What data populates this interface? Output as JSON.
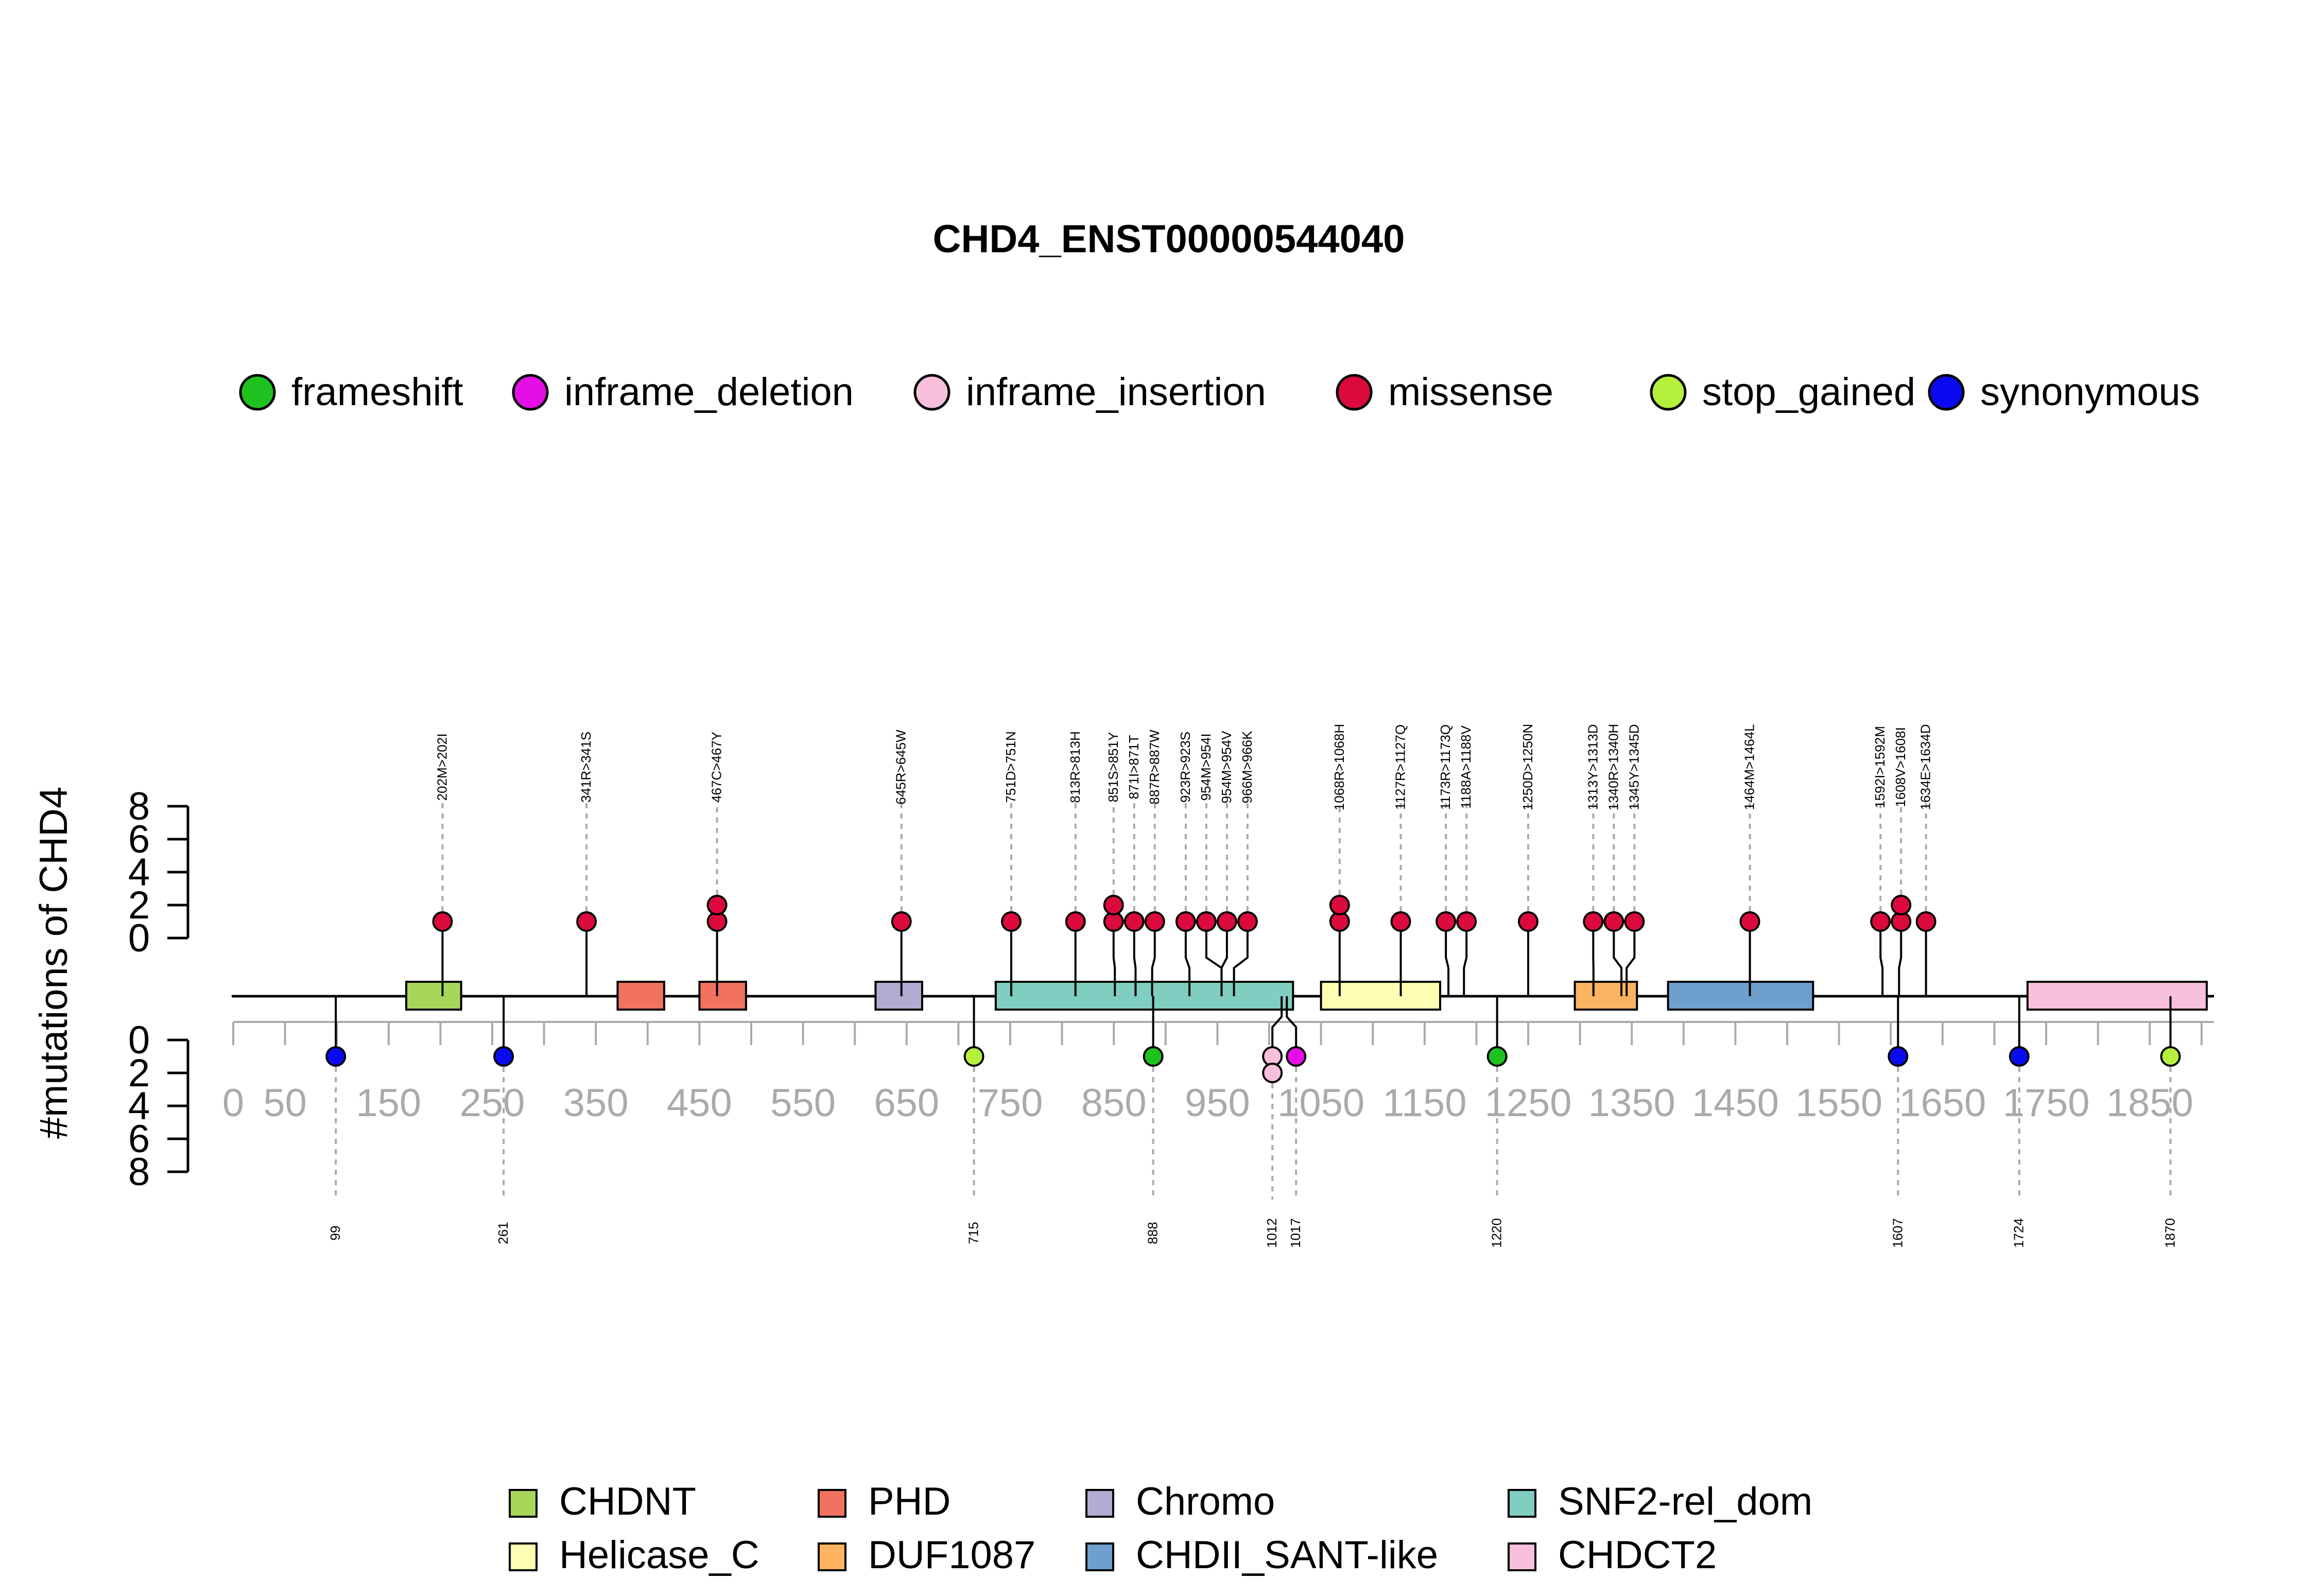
{
  "chart_data": {
    "type": "lollipop",
    "title": "CHD4_ENST00000544040",
    "ylabel": "#mutations of CHD4",
    "y_ticks": [
      "0",
      "2",
      "4",
      "6",
      "8"
    ],
    "x_ticks": [
      0,
      50,
      150,
      250,
      350,
      450,
      550,
      650,
      750,
      850,
      950,
      1050,
      1150,
      1250,
      1350,
      1450,
      1550,
      1650,
      1750,
      1850
    ],
    "protein_length": 1912,
    "mutation_legend": [
      {
        "name": "frameshift",
        "color": "#1ec21e"
      },
      {
        "name": "inframe_deletion",
        "color": "#e60ee6"
      },
      {
        "name": "inframe_insertion",
        "color": "#f8c0dc"
      },
      {
        "name": "missense",
        "color": "#dc0a3c"
      },
      {
        "name": "stop_gained",
        "color": "#b4f03c"
      },
      {
        "name": "synonymous",
        "color": "#0a0af0"
      }
    ],
    "domains": [
      {
        "name": "CHDNT",
        "start": 167,
        "end": 220,
        "color": "#a6d75b"
      },
      {
        "name": "PHD",
        "start": 371,
        "end": 416,
        "color": "#f0725f"
      },
      {
        "name": "PHD",
        "start": 450,
        "end": 495,
        "color": "#f0725f"
      },
      {
        "name": "Chromo",
        "start": 620,
        "end": 665,
        "color": "#b2abd2"
      },
      {
        "name": "SNF2-rel_dom",
        "start": 736,
        "end": 1023,
        "color": "#80cdc1"
      },
      {
        "name": "Helicase_C",
        "start": 1050,
        "end": 1165,
        "color": "#ffffb3"
      },
      {
        "name": "DUF1087",
        "start": 1295,
        "end": 1355,
        "color": "#fdb462"
      },
      {
        "name": "CHDII_SANT-like",
        "start": 1385,
        "end": 1525,
        "color": "#6f9fcc"
      },
      {
        "name": "CHDCT2",
        "start": 1732,
        "end": 1905,
        "color": "#f8c0dc"
      }
    ],
    "domain_legend": [
      {
        "name": "CHDNT",
        "color": "#a6d75b"
      },
      {
        "name": "PHD",
        "color": "#f0725f"
      },
      {
        "name": "Chromo",
        "color": "#b2abd2"
      },
      {
        "name": "SNF2-rel_dom",
        "color": "#80cdc1"
      },
      {
        "name": "Helicase_C",
        "color": "#ffffb3"
      },
      {
        "name": "DUF1087",
        "color": "#fdb462"
      },
      {
        "name": "CHDII_SANT-like",
        "color": "#6f9fcc"
      },
      {
        "name": "CHDCT2",
        "color": "#f8c0dc"
      }
    ],
    "top_mutations": [
      {
        "label": "202M>202I",
        "pos": 202,
        "count": 1,
        "type": "missense"
      },
      {
        "label": "341R>341S",
        "pos": 341,
        "count": 1,
        "type": "missense"
      },
      {
        "label": "467C>467Y",
        "pos": 467,
        "count": 2,
        "type": "missense"
      },
      {
        "label": "645R>645W",
        "pos": 645,
        "count": 1,
        "type": "missense"
      },
      {
        "label": "751D>751N",
        "pos": 751,
        "count": 1,
        "type": "missense"
      },
      {
        "label": "813R>813H",
        "pos": 813,
        "count": 1,
        "type": "missense"
      },
      {
        "label": "851S>851Y",
        "pos": 851,
        "count": 2,
        "type": "missense"
      },
      {
        "label": "871I>871T",
        "pos": 871,
        "count": 1,
        "type": "missense"
      },
      {
        "label": "887R>887W",
        "pos": 887,
        "count": 1,
        "type": "missense"
      },
      {
        "label": "923R>923S",
        "pos": 923,
        "count": 1,
        "type": "missense"
      },
      {
        "label": "954M>954I",
        "pos": 954,
        "count": 1,
        "type": "missense"
      },
      {
        "label": "954M>954V",
        "pos": 954,
        "count": 1,
        "type": "missense"
      },
      {
        "label": "966M>966K",
        "pos": 966,
        "count": 1,
        "type": "missense"
      },
      {
        "label": "1068R>1068H",
        "pos": 1068,
        "count": 2,
        "type": "missense"
      },
      {
        "label": "1127R>1127Q",
        "pos": 1127,
        "count": 1,
        "type": "missense"
      },
      {
        "label": "1173R>1173Q",
        "pos": 1173,
        "count": 1,
        "type": "missense"
      },
      {
        "label": "1188A>1188V",
        "pos": 1188,
        "count": 1,
        "type": "missense"
      },
      {
        "label": "1250D>1250N",
        "pos": 1250,
        "count": 1,
        "type": "missense"
      },
      {
        "label": "1313Y>1313D",
        "pos": 1313,
        "count": 1,
        "type": "missense"
      },
      {
        "label": "1340R>1340H",
        "pos": 1340,
        "count": 1,
        "type": "missense"
      },
      {
        "label": "1345Y>1345D",
        "pos": 1345,
        "count": 1,
        "type": "missense"
      },
      {
        "label": "1464M>1464L",
        "pos": 1464,
        "count": 1,
        "type": "missense"
      },
      {
        "label": "1592I>1592M",
        "pos": 1592,
        "count": 1,
        "type": "missense"
      },
      {
        "label": "1608V>1608I",
        "pos": 1608,
        "count": 2,
        "type": "missense"
      },
      {
        "label": "1634E>1634D",
        "pos": 1634,
        "count": 1,
        "type": "missense"
      }
    ],
    "bottom_mutations": [
      {
        "label": "99",
        "pos": 99,
        "count": 1,
        "type": "synonymous"
      },
      {
        "label": "261",
        "pos": 261,
        "count": 1,
        "type": "synonymous"
      },
      {
        "label": "715",
        "pos": 715,
        "count": 1,
        "type": "stop_gained"
      },
      {
        "label": "888",
        "pos": 888,
        "count": 1,
        "type": "frameshift"
      },
      {
        "label": "1012",
        "pos": 1012,
        "count": 2,
        "type": "inframe_insertion"
      },
      {
        "label": "1017",
        "pos": 1017,
        "count": 1,
        "type": "inframe_deletion"
      },
      {
        "label": "1220",
        "pos": 1220,
        "count": 1,
        "type": "frameshift"
      },
      {
        "label": "1607",
        "pos": 1607,
        "count": 1,
        "type": "synonymous"
      },
      {
        "label": "1724",
        "pos": 1724,
        "count": 1,
        "type": "synonymous"
      },
      {
        "label": "1870",
        "pos": 1870,
        "count": 1,
        "type": "stop_gained"
      }
    ]
  }
}
